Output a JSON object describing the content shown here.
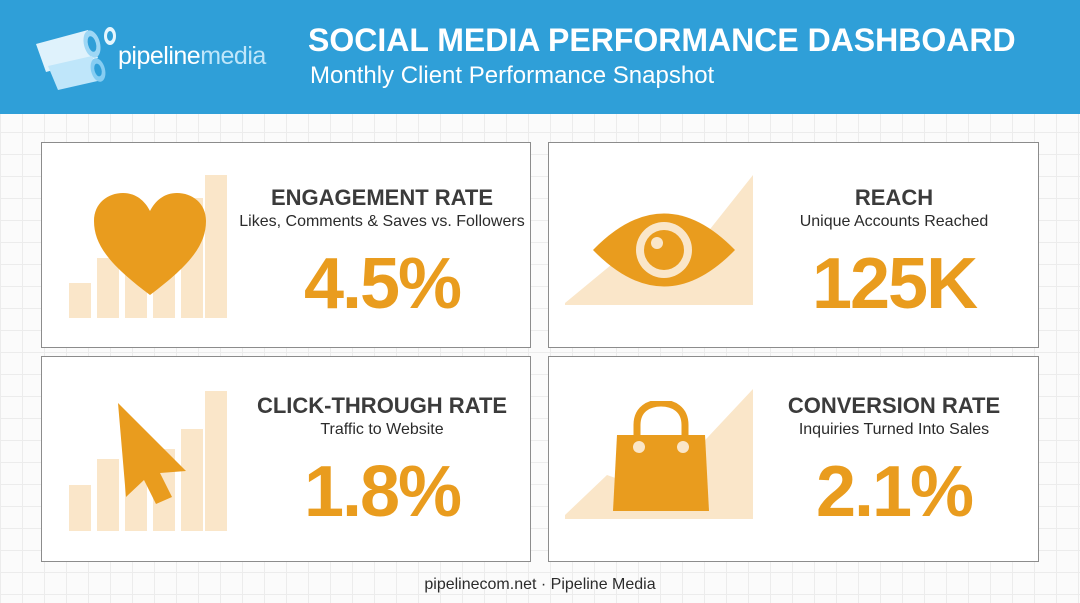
{
  "header": {
    "logo_text_primary": "pipeline",
    "logo_text_secondary": "media",
    "title": "SOCIAL MEDIA PERFORMANCE DASHBOARD",
    "subtitle": "Monthly Client Performance Snapshot",
    "background_color": "#2f9fd8"
  },
  "colors": {
    "accent": "#e99c1e",
    "accent_light": "#fae6c9"
  },
  "cards": [
    {
      "label": "ENGAGEMENT RATE",
      "description": "Likes, Comments & Saves vs. Followers",
      "value": "4.5%",
      "icon": "heart-icon",
      "background_graphic": "bar-chart"
    },
    {
      "label": "REACH",
      "description": "Unique Accounts Reached",
      "value": "125K",
      "icon": "eye-icon",
      "background_graphic": "area-chart"
    },
    {
      "label": "CLICK-THROUGH RATE",
      "description": "Traffic to Website",
      "value": "1.8%",
      "icon": "cursor-arrow-icon",
      "background_graphic": "bar-chart"
    },
    {
      "label": "CONVERSION RATE",
      "description": "Inquiries Turned Into Sales",
      "value": "2.1%",
      "icon": "shopping-bag-icon",
      "background_graphic": "area-chart"
    }
  ],
  "footer": {
    "text": "pipelinecom.net · Pipeline Media"
  }
}
